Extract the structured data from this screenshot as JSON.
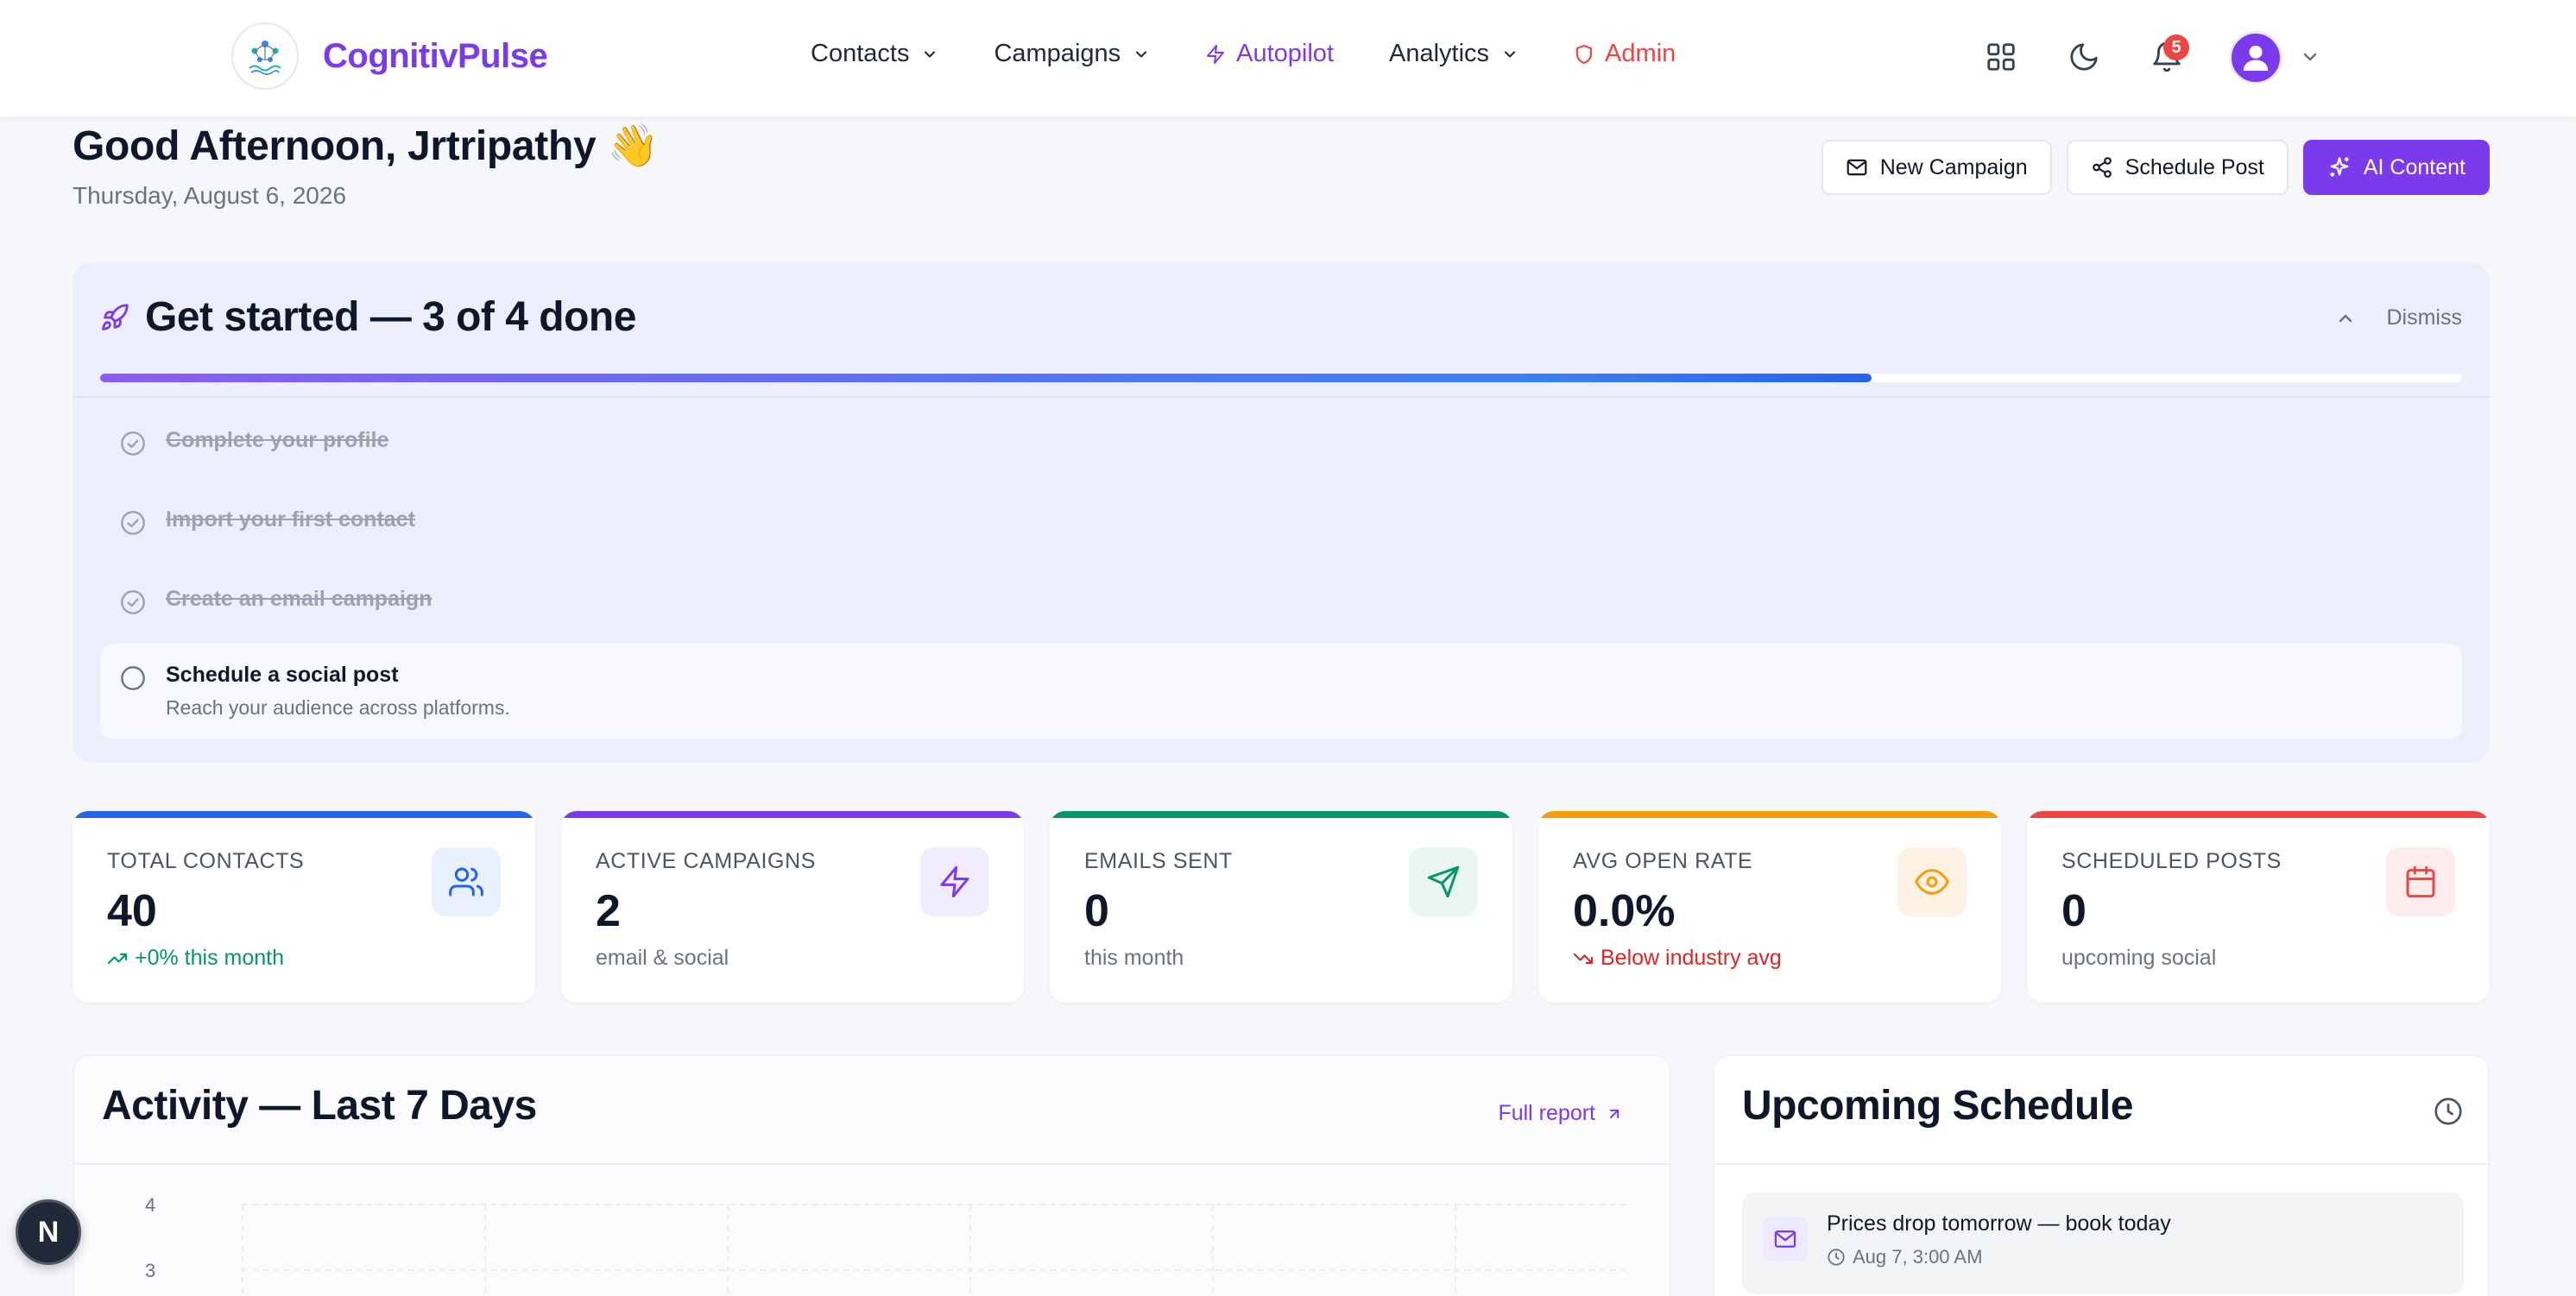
{
  "brand": {
    "name": "CognitivPulse"
  },
  "nav": {
    "contacts": "Contacts",
    "campaigns": "Campaigns",
    "autopilot": "Autopilot",
    "analytics": "Analytics",
    "admin": "Admin",
    "notification_count": "5"
  },
  "header": {
    "greeting": "Good Afternoon, Jrtripathy 👋",
    "date": "Thursday, August 6, 2026",
    "actions": {
      "new_campaign": "New Campaign",
      "schedule_post": "Schedule Post",
      "ai_content": "AI Content"
    }
  },
  "onboarding": {
    "title": "Get started — 3 of 4 done",
    "dismiss": "Dismiss",
    "progress": 0.75,
    "tasks": [
      {
        "label": "Complete your profile",
        "done": true
      },
      {
        "label": "Import your first contact",
        "done": true
      },
      {
        "label": "Create an email campaign",
        "done": true
      },
      {
        "label": "Schedule a social post",
        "desc": "Reach your audience across platforms.",
        "done": false
      }
    ]
  },
  "stats": [
    {
      "label": "TOTAL CONTACTS",
      "value": "40",
      "sub": "+0% this month",
      "color": "#2563eb",
      "icon": "users-icon"
    },
    {
      "label": "ACTIVE CAMPAIGNS",
      "value": "2",
      "sub": "email & social",
      "color": "#7c3aed",
      "icon": "zap-icon"
    },
    {
      "label": "EMAILS SENT",
      "value": "0",
      "sub": "this month",
      "color": "#059669",
      "icon": "send-icon"
    },
    {
      "label": "AVG OPEN RATE",
      "value": "0.0%",
      "sub": "Below industry avg",
      "color": "#f59e0b",
      "icon": "eye-icon"
    },
    {
      "label": "SCHEDULED POSTS",
      "value": "0",
      "sub": "upcoming social",
      "color": "#ef4444",
      "icon": "calendar-icon"
    }
  ],
  "activity": {
    "title": "Activity — Last 7 Days",
    "full_report": "Full report",
    "y_ticks": [
      "4",
      "3"
    ]
  },
  "schedule": {
    "title": "Upcoming Schedule",
    "items": [
      {
        "title": "Prices drop tomorrow — book today",
        "time": "Aug 7, 3:00 AM"
      }
    ]
  },
  "fab": {
    "label": "N"
  },
  "colors": {
    "accent": "#7c3aed",
    "danger": "#ef4444",
    "success": "#059669"
  }
}
